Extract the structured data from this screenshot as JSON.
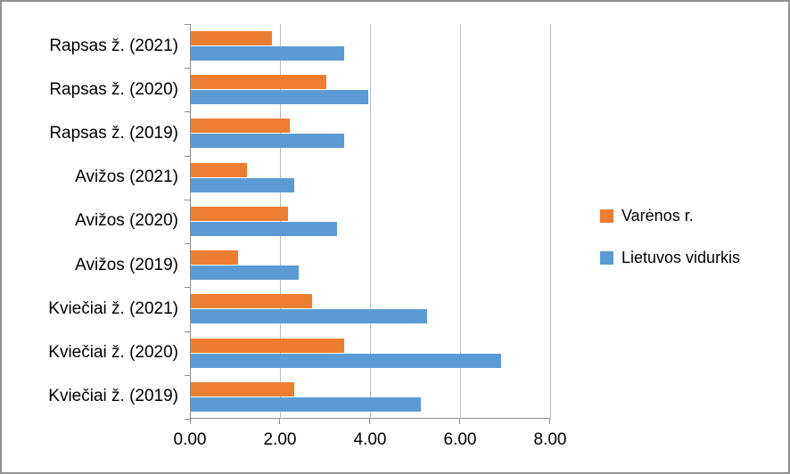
{
  "chart_data": {
    "type": "bar",
    "orientation": "horizontal",
    "title": "",
    "xlabel": "",
    "ylabel": "",
    "categories": [
      "Rapsas ž. (2021)",
      "Rapsas ž. (2020)",
      "Rapsas ž. (2019)",
      "Avižos (2021)",
      "Avižos (2020)",
      "Avižos (2019)",
      "Kviečiai ž. (2021)",
      "Kviečiai ž. (2020)",
      "Kviečiai ž. (2019)"
    ],
    "series": [
      {
        "name": "Varėnos r.",
        "color": "#ED7D31",
        "values": [
          1.8,
          3.0,
          2.2,
          1.25,
          2.15,
          1.05,
          2.7,
          3.4,
          2.3
        ]
      },
      {
        "name": "Lietuvos vidurkis",
        "color": "#5B9BD5",
        "values": [
          3.4,
          3.95,
          3.4,
          2.3,
          3.25,
          2.4,
          5.25,
          6.9,
          5.1
        ]
      }
    ],
    "xlim": [
      0,
      8
    ],
    "x_ticks": [
      "0.00",
      "2.00",
      "4.00",
      "6.00",
      "8.00"
    ],
    "x_tick_values": [
      0,
      2,
      4,
      6,
      8
    ],
    "grid": true,
    "legend_position": "right",
    "colors": {
      "grid": "#BCBCBC",
      "axis": "#8C8C8C",
      "text": "#000000",
      "chart_border": "#909090"
    }
  }
}
